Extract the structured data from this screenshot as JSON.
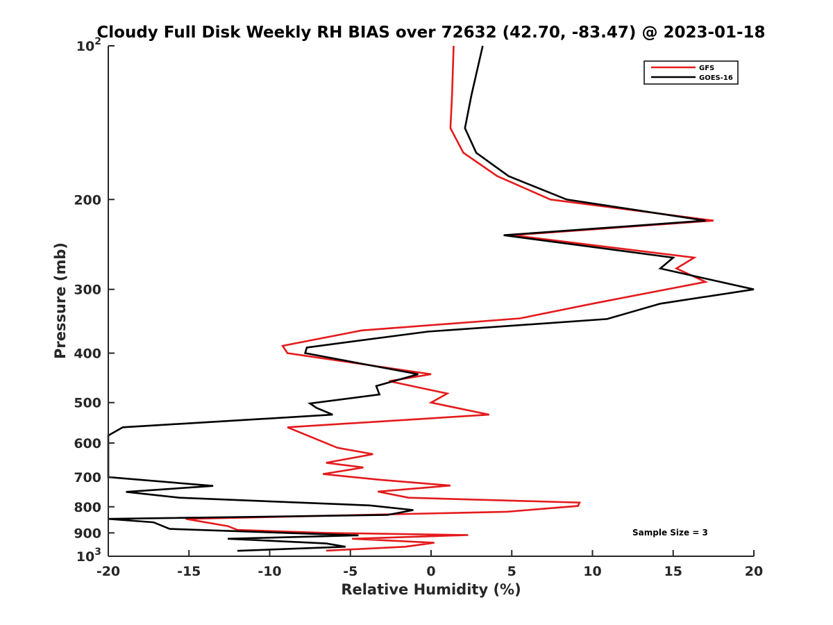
{
  "chart_data": {
    "type": "line",
    "title": "Cloudy Full Disk Weekly RH BIAS over 72632 (42.70, -83.47) @ 2023-01-18",
    "xlabel": "Relative Humidity (%)",
    "ylabel": "Pressure (mb)",
    "xlim": [
      -20,
      20
    ],
    "ylim": [
      100,
      1000
    ],
    "y_scale": "log",
    "y_reversed": true,
    "x_ticks": [
      -20,
      -15,
      -10,
      -5,
      0,
      5,
      10,
      15,
      20
    ],
    "x_tick_labels": [
      "-20",
      "-15",
      "-10",
      "-5",
      "0",
      "5",
      "10",
      "15",
      "20"
    ],
    "y_tick_labels": [
      {
        "value": 100,
        "base": "10",
        "exp": "2"
      },
      {
        "value": 200,
        "text": "200"
      },
      {
        "value": 300,
        "text": "300"
      },
      {
        "value": 400,
        "text": "400"
      },
      {
        "value": 500,
        "text": "500"
      },
      {
        "value": 600,
        "text": "600"
      },
      {
        "value": 700,
        "text": "700"
      },
      {
        "value": 800,
        "text": "800"
      },
      {
        "value": 900,
        "text": "900"
      },
      {
        "value": 1000,
        "base": "10",
        "exp": "3"
      }
    ],
    "grid": false,
    "legend_position": "top-right",
    "annotation": "Sample Size = 3",
    "series": [
      {
        "name": "GFS",
        "color": "#e41a1c",
        "points": [
          [
            1.4,
            100
          ],
          [
            1.3,
            125
          ],
          [
            1.2,
            145
          ],
          [
            2.0,
            162
          ],
          [
            4.1,
            180
          ],
          [
            7.4,
            200
          ],
          [
            17.5,
            220
          ],
          [
            5.0,
            235
          ],
          [
            16.3,
            260
          ],
          [
            15.2,
            273
          ],
          [
            17.0,
            290
          ],
          [
            10.0,
            320
          ],
          [
            5.5,
            342
          ],
          [
            -4.3,
            361
          ],
          [
            -9.2,
            387
          ],
          [
            -8.9,
            400
          ],
          [
            0.0,
            440
          ],
          [
            -2.6,
            454
          ],
          [
            1.0,
            480
          ],
          [
            0.0,
            500
          ],
          [
            3.6,
            528
          ],
          [
            -8.9,
            559
          ],
          [
            -5.8,
            613
          ],
          [
            -3.6,
            631
          ],
          [
            -6.5,
            656
          ],
          [
            -4.2,
            670
          ],
          [
            -6.7,
            690
          ],
          [
            -3.2,
            708
          ],
          [
            1.2,
            727
          ],
          [
            -3.3,
            747
          ],
          [
            -1.4,
            768
          ],
          [
            9.2,
            785
          ],
          [
            9.1,
            797
          ],
          [
            4.7,
            818
          ],
          [
            -15.2,
            845
          ],
          [
            -12.6,
            873
          ],
          [
            -12.0,
            888
          ],
          [
            -6.5,
            900
          ],
          [
            2.3,
            909
          ],
          [
            -4.9,
            924
          ],
          [
            0.2,
            941
          ],
          [
            -1.6,
            958
          ],
          [
            -6.5,
            975
          ]
        ]
      },
      {
        "name": "GOES-16",
        "color": "#000000",
        "points": [
          [
            3.2,
            100
          ],
          [
            2.5,
            125
          ],
          [
            2.1,
            145
          ],
          [
            2.8,
            162
          ],
          [
            4.8,
            180
          ],
          [
            8.4,
            200
          ],
          [
            17.0,
            220
          ],
          [
            4.5,
            235
          ],
          [
            15.0,
            260
          ],
          [
            14.2,
            273
          ],
          [
            20.0,
            300
          ],
          [
            14.2,
            320
          ],
          [
            10.9,
            343
          ],
          [
            -0.2,
            363
          ],
          [
            -7.7,
            390
          ],
          [
            -7.8,
            400
          ],
          [
            -0.8,
            440
          ],
          [
            -3.4,
            464
          ],
          [
            -3.2,
            482
          ],
          [
            -7.5,
            502
          ],
          [
            -7.1,
            512
          ],
          [
            -6.1,
            528
          ],
          [
            -19.1,
            559
          ],
          [
            -20.0,
            580
          ],
          [
            -20.0,
            700
          ],
          [
            -13.5,
            728
          ],
          [
            -18.9,
            748
          ],
          [
            -15.6,
            768
          ],
          [
            -3.8,
            795
          ],
          [
            -1.1,
            812
          ],
          [
            -2.7,
            830
          ],
          [
            -20.0,
            845
          ],
          [
            -17.2,
            858
          ],
          [
            -16.2,
            884
          ],
          [
            -4.5,
            910
          ],
          [
            -12.6,
            924
          ],
          [
            -6.5,
            944
          ],
          [
            -5.3,
            958
          ],
          [
            -12.0,
            976
          ]
        ]
      }
    ]
  }
}
